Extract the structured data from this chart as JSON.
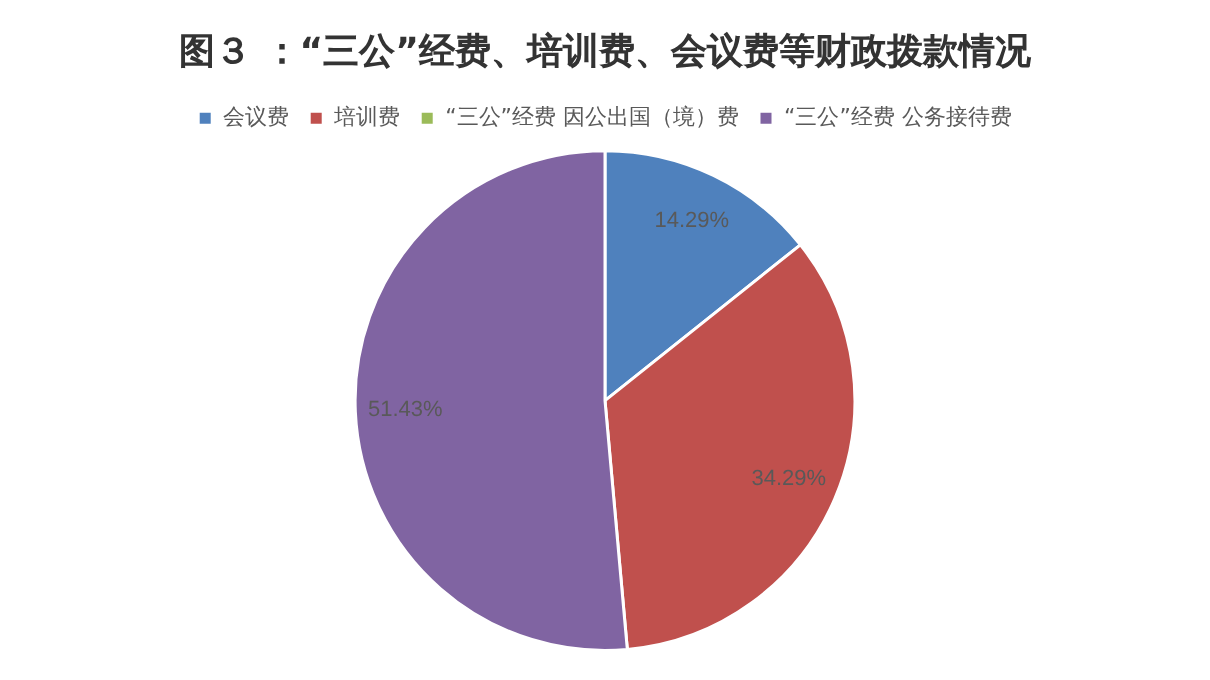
{
  "chart_data": {
    "type": "pie",
    "title": "图３ ：“三公”经费、培训费、会议费等财政拨款情况",
    "categories": [
      "会议费",
      "培训费",
      "“三公”经费 因公出国（境）费",
      "“三公”经费 公务接待费"
    ],
    "values": [
      14.29,
      34.29,
      0,
      51.43
    ],
    "colors": [
      "#4f81bd",
      "#c0504d",
      "#9bbb59",
      "#8064a2"
    ],
    "value_labels": [
      "14.29%",
      "34.29%",
      null,
      "51.43%"
    ],
    "legend": "top"
  }
}
